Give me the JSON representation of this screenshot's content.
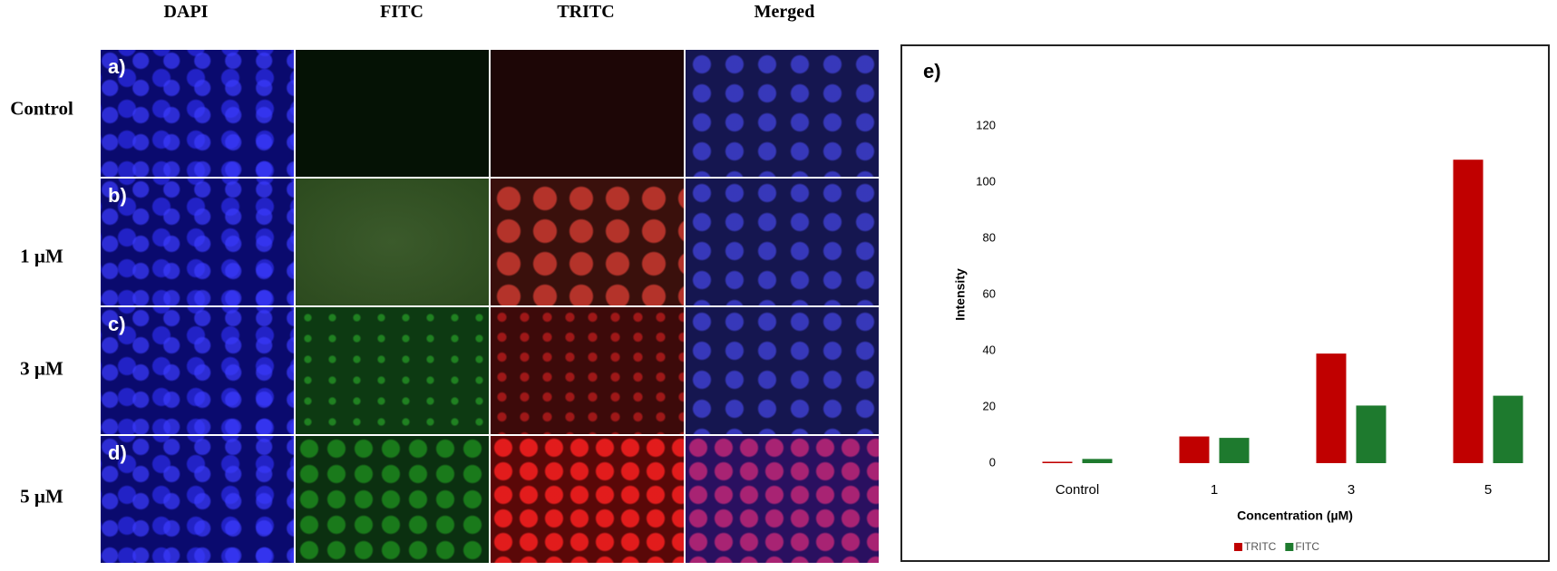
{
  "figure": {
    "columns": [
      "DAPI",
      "FITC",
      "TRITC",
      "Merged"
    ],
    "rows": [
      "Control",
      "1 µM",
      "3 µM",
      "5 µM"
    ],
    "panel_letters": [
      "a)",
      "b)",
      "c)",
      "d)"
    ],
    "chart_letter": "e)"
  },
  "chart_data": {
    "type": "bar",
    "x_label": "Concentration (µM)",
    "y_label": "Intensity",
    "categories": [
      "Control",
      "1",
      "3",
      "5"
    ],
    "series": [
      {
        "name": "TRITC",
        "color": "#c00000",
        "values": [
          0.5,
          9.5,
          39,
          108
        ]
      },
      {
        "name": "FITC",
        "color": "#1e7a2e",
        "values": [
          1.5,
          9,
          20.5,
          24
        ]
      }
    ],
    "ylim": [
      0,
      120
    ],
    "yticks": [
      0,
      20,
      40,
      60,
      80,
      100,
      120
    ],
    "grid": false,
    "legend": "bottom"
  }
}
